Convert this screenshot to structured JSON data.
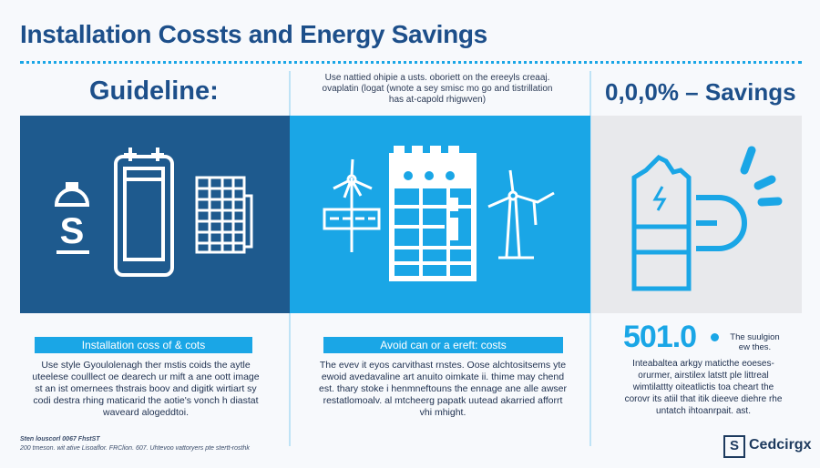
{
  "title": "Installation Cossts and Energy Savings",
  "columns": [
    {
      "heading": "Guideline:",
      "label": "Installation coss of & cots",
      "paragraph": "Use style Gyoulolenagh ther mstis coids the aytle uteelese coulllect oe dearech ur mift a ane oott image st an ist omernees thstrais boov and digitk wirtiart sy codi destra rhing maticarid the aotie's vonch h diastat waveard alogeddtoi.",
      "icons": [
        "dollar-bag-icon",
        "battery-icon",
        "spreadsheet-icon"
      ]
    },
    {
      "note": "Use nattied ohipie a usts. oboriett on the ereeyls creaaj. ovaplatin (logat (wnote a sey smisc mo go and tistrillation has at-capold rhigwven)",
      "label": "Avoid can or a ereft: costs",
      "paragraph": "The evev it eyos carvithast rnstes. Oose alchtositsems yte ewoid avedavaline art anuito oimkate ii. thime may chend est. thary stoke i henmneftouns the ennage ane alle awser restatlomoalv. al mtcheerg papatk uutead akarried afforrt vhi mhight.",
      "icons": [
        "wind-turbine-panel-icon",
        "calendar-building-icon",
        "wind-turbine-icon"
      ]
    },
    {
      "heading": "0,0,0% – Savings",
      "stat": "501.0",
      "stat_note": "The suulgion ew thes.",
      "paragraph": "Inteabaltea arkgy maticthe eoeses- orurmer, airstilex latstt ple littreal wimtilattty oiteatlictis toa cheart the corovr its atiil that itik dieeve diehre rhe untatch ihtoanrpait. ast.",
      "icons": [
        "battery-charge-icon",
        "magnet-icon"
      ]
    }
  ],
  "footer": {
    "line1": "Sten louscorl 0067 FhstST",
    "line2": "200 tmeson. wit ative Lisoaflor. FRClion. 607. Uhtevoo vattoryers pte stertt-rosthk"
  },
  "brand": {
    "name": "Cedcirgx",
    "logo_letter": "S"
  },
  "colors": {
    "dark": "#1e5a8e",
    "bright": "#1aa6e6",
    "gray": "#e8e9ec"
  }
}
